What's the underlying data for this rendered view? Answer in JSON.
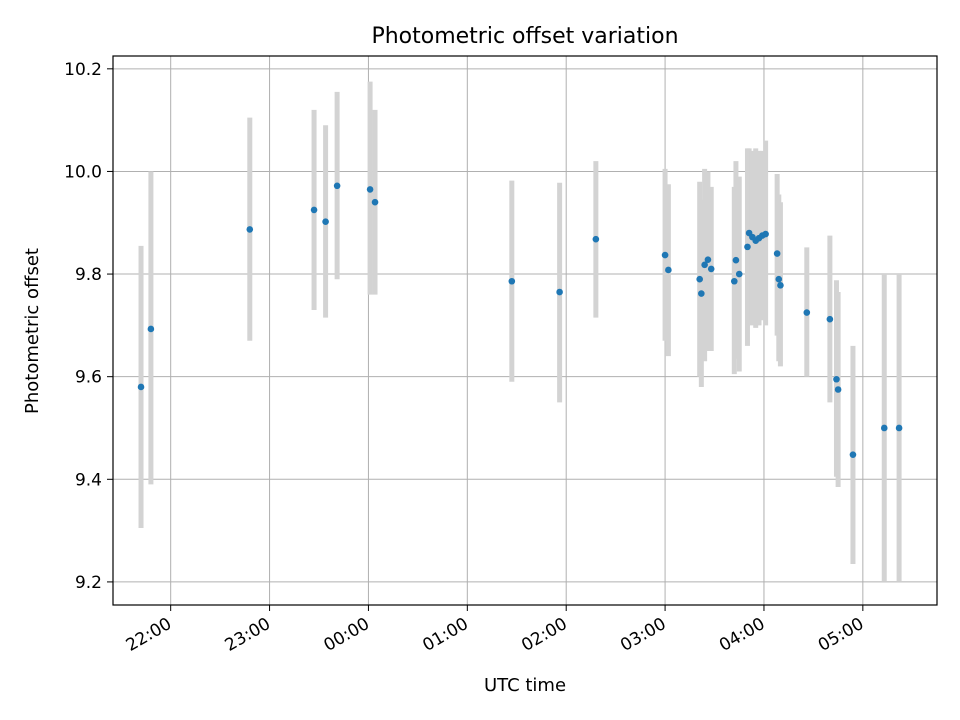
{
  "chart_data": {
    "type": "scatter",
    "title": "Photometric offset variation",
    "xlabel": "UTC time",
    "ylabel": "Photometric offset",
    "grid": true,
    "ylim": [
      9.155,
      10.225
    ],
    "xlim": [
      "21:25",
      "05:45"
    ],
    "x_ticks": [
      "22:00",
      "23:00",
      "00:00",
      "01:00",
      "02:00",
      "03:00",
      "04:00",
      "05:00"
    ],
    "y_ticks": [
      "9.2",
      "9.4",
      "9.6",
      "9.8",
      "10.0",
      "10.2"
    ],
    "colors": {
      "point": "#1f77b4",
      "errorbar": "#d3d3d3",
      "grid": "#b0b0b0"
    },
    "points": [
      {
        "x": "21:42",
        "y": 9.58,
        "ylow": 9.305,
        "yhigh": 9.855
      },
      {
        "x": "21:48",
        "y": 9.693,
        "ylow": 9.39,
        "yhigh": 10.0
      },
      {
        "x": "22:48",
        "y": 9.887,
        "ylow": 9.67,
        "yhigh": 10.105
      },
      {
        "x": "23:27",
        "y": 9.925,
        "ylow": 9.73,
        "yhigh": 10.12
      },
      {
        "x": "23:34",
        "y": 9.902,
        "ylow": 9.715,
        "yhigh": 10.09
      },
      {
        "x": "23:41",
        "y": 9.972,
        "ylow": 9.79,
        "yhigh": 10.155
      },
      {
        "x": "00:01",
        "y": 9.965,
        "ylow": 9.76,
        "yhigh": 10.175
      },
      {
        "x": "00:04",
        "y": 9.94,
        "ylow": 9.76,
        "yhigh": 10.12
      },
      {
        "x": "01:27",
        "y": 9.786,
        "ylow": 9.59,
        "yhigh": 9.982
      },
      {
        "x": "01:56",
        "y": 9.765,
        "ylow": 9.55,
        "yhigh": 9.978
      },
      {
        "x": "02:18",
        "y": 9.868,
        "ylow": 9.715,
        "yhigh": 10.02
      },
      {
        "x": "03:00",
        "y": 9.837,
        "ylow": 9.67,
        "yhigh": 10.005
      },
      {
        "x": "03:02",
        "y": 9.808,
        "ylow": 9.64,
        "yhigh": 9.975
      },
      {
        "x": "03:21",
        "y": 9.79,
        "ylow": 9.6,
        "yhigh": 9.98
      },
      {
        "x": "03:22",
        "y": 9.762,
        "ylow": 9.58,
        "yhigh": 9.945
      },
      {
        "x": "03:24",
        "y": 9.818,
        "ylow": 9.63,
        "yhigh": 10.005
      },
      {
        "x": "03:26",
        "y": 9.828,
        "ylow": 9.65,
        "yhigh": 10.0
      },
      {
        "x": "03:28",
        "y": 9.81,
        "ylow": 9.65,
        "yhigh": 9.97
      },
      {
        "x": "03:42",
        "y": 9.786,
        "ylow": 9.605,
        "yhigh": 9.97
      },
      {
        "x": "03:43",
        "y": 9.827,
        "ylow": 9.635,
        "yhigh": 10.02
      },
      {
        "x": "03:45",
        "y": 9.8,
        "ylow": 9.61,
        "yhigh": 9.99
      },
      {
        "x": "03:50",
        "y": 9.853,
        "ylow": 9.66,
        "yhigh": 10.045
      },
      {
        "x": "03:51",
        "y": 9.88,
        "ylow": 9.71,
        "yhigh": 10.045
      },
      {
        "x": "03:53",
        "y": 9.872,
        "ylow": 9.7,
        "yhigh": 10.04
      },
      {
        "x": "03:55",
        "y": 9.865,
        "ylow": 9.695,
        "yhigh": 10.045
      },
      {
        "x": "03:57",
        "y": 9.87,
        "ylow": 9.7,
        "yhigh": 10.04
      },
      {
        "x": "03:59",
        "y": 9.875,
        "ylow": 9.71,
        "yhigh": 10.04
      },
      {
        "x": "04:01",
        "y": 9.878,
        "ylow": 9.7,
        "yhigh": 10.06
      },
      {
        "x": "04:08",
        "y": 9.84,
        "ylow": 9.68,
        "yhigh": 9.995
      },
      {
        "x": "04:09",
        "y": 9.79,
        "ylow": 9.63,
        "yhigh": 9.955
      },
      {
        "x": "04:10",
        "y": 9.778,
        "ylow": 9.62,
        "yhigh": 9.94
      },
      {
        "x": "04:26",
        "y": 9.725,
        "ylow": 9.6,
        "yhigh": 9.852
      },
      {
        "x": "04:40",
        "y": 9.712,
        "ylow": 9.55,
        "yhigh": 9.875
      },
      {
        "x": "04:44",
        "y": 9.595,
        "ylow": 9.405,
        "yhigh": 9.788
      },
      {
        "x": "04:45",
        "y": 9.575,
        "ylow": 9.385,
        "yhigh": 9.765
      },
      {
        "x": "04:54",
        "y": 9.448,
        "ylow": 9.235,
        "yhigh": 9.66
      },
      {
        "x": "05:13",
        "y": 9.5,
        "ylow": 9.2,
        "yhigh": 9.8
      },
      {
        "x": "05:22",
        "y": 9.5,
        "ylow": 9.2,
        "yhigh": 9.8
      }
    ]
  }
}
